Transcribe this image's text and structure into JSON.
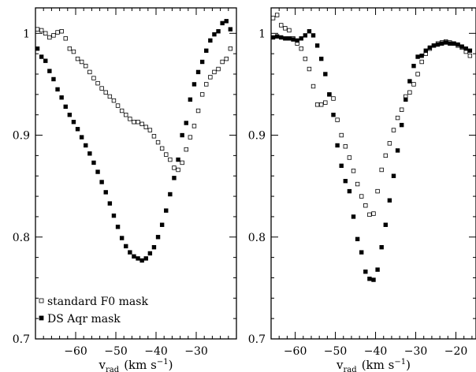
{
  "chart_data": [
    {
      "type": "scatter",
      "panel": "left",
      "xlabel_main": "v",
      "xlabel_sub": "rad",
      "xlabel_units": "(km s",
      "xlabel_sup": "−1",
      "xlabel_close": ")",
      "xlim": [
        -70,
        -20
      ],
      "ylim": [
        0.7,
        1.025
      ],
      "xticks": [
        -60,
        -50,
        -40,
        -30
      ],
      "xtick_labels": [
        "−60",
        "−50",
        "−40",
        "−30"
      ],
      "yticks": [
        0.8,
        0.9,
        1.0
      ],
      "ytick_labels": [
        "0.8",
        "0.9",
        "1"
      ],
      "ytick_floor_label": "0.7",
      "legend_placement": "bottom-left",
      "series": [
        {
          "name": "standard F0 mask",
          "marker": "open-square",
          "x": [
            -69.5,
            -68.5,
            -67.5,
            -66.5,
            -65.5,
            -64.5,
            -63.5,
            -62.5,
            -61.5,
            -60.5,
            -59.5,
            -58.5,
            -57.5,
            -56.5,
            -55.5,
            -54.5,
            -53.5,
            -52.5,
            -51.5,
            -50.5,
            -49.5,
            -48.5,
            -47.5,
            -46.5,
            -45.5,
            -44.5,
            -43.5,
            -42.5,
            -41.5,
            -40.5,
            -39.5,
            -38.5,
            -37.5,
            -36.5,
            -35.5,
            -34.5,
            -33.5,
            -32.5,
            -31.5,
            -30.5,
            -29.5,
            -28.5,
            -27.5,
            -26.5,
            -25.5,
            -24.5,
            -23.5,
            -22.5,
            -21.5
          ],
          "values": [
            1.004,
            1.003,
            1.0,
            0.996,
            0.998,
            1.001,
            1.002,
            0.995,
            0.985,
            0.982,
            0.975,
            0.972,
            0.968,
            0.962,
            0.956,
            0.951,
            0.946,
            0.942,
            0.938,
            0.934,
            0.929,
            0.924,
            0.92,
            0.916,
            0.913,
            0.913,
            0.911,
            0.908,
            0.905,
            0.899,
            0.893,
            0.887,
            0.881,
            0.876,
            0.868,
            0.866,
            0.873,
            0.886,
            0.898,
            0.909,
            0.924,
            0.94,
            0.95,
            0.957,
            0.962,
            0.965,
            0.972,
            0.975,
            0.985
          ]
        },
        {
          "name": "DS Aqr mask",
          "marker": "filled-square",
          "x": [
            -69.5,
            -68.5,
            -67.5,
            -66.5,
            -65.5,
            -64.5,
            -63.5,
            -62.5,
            -61.5,
            -60.5,
            -59.5,
            -58.5,
            -57.5,
            -56.5,
            -55.5,
            -54.5,
            -53.5,
            -52.5,
            -51.5,
            -50.5,
            -49.5,
            -48.5,
            -47.5,
            -46.5,
            -45.5,
            -44.5,
            -43.5,
            -42.5,
            -41.5,
            -40.5,
            -39.5,
            -38.5,
            -37.5,
            -36.5,
            -35.5,
            -34.5,
            -33.5,
            -32.5,
            -31.5,
            -30.5,
            -29.5,
            -28.5,
            -27.5,
            -26.5,
            -25.5,
            -24.5,
            -23.5,
            -22.5,
            -21.5
          ],
          "values": [
            0.985,
            0.977,
            0.973,
            0.963,
            0.955,
            0.945,
            0.937,
            0.928,
            0.92,
            0.913,
            0.906,
            0.898,
            0.89,
            0.882,
            0.873,
            0.864,
            0.854,
            0.844,
            0.833,
            0.821,
            0.81,
            0.799,
            0.791,
            0.785,
            0.781,
            0.779,
            0.777,
            0.779,
            0.784,
            0.79,
            0.8,
            0.812,
            0.826,
            0.842,
            0.858,
            0.876,
            0.9,
            0.912,
            0.935,
            0.95,
            0.962,
            0.972,
            0.983,
            0.993,
            0.999,
            1.002,
            1.01,
            1.012,
            1.004
          ]
        }
      ]
    },
    {
      "type": "scatter",
      "panel": "right",
      "xlabel_main": "v",
      "xlabel_sub": "rad",
      "xlabel_units": "(km s",
      "xlabel_sup": "−1",
      "xlabel_close": ")",
      "xlim": [
        -66,
        -15
      ],
      "ylim": [
        0.7,
        1.025
      ],
      "xticks": [
        -60,
        -50,
        -40,
        -30,
        -20
      ],
      "xtick_labels": [
        "−60",
        "−50",
        "−40",
        "−30",
        "−20"
      ],
      "yticks": [
        0.8,
        0.9,
        1.0
      ],
      "ytick_labels": [
        "0.8",
        "0.9",
        "1"
      ],
      "ytick_floor_label": "0.7",
      "series": [
        {
          "name": "standard F0 mask",
          "marker": "open-square",
          "x": [
            -65.5,
            -64.5,
            -63.5,
            -62.5,
            -61.5,
            -60.5,
            -59.5,
            -58.5,
            -57.5,
            -56.5,
            -55.5,
            -54.5,
            -53.5,
            -52.5,
            -51.5,
            -50.5,
            -49.5,
            -48.5,
            -47.5,
            -46.5,
            -45.5,
            -44.5,
            -43.5,
            -42.5,
            -41.5,
            -40.5,
            -39.5,
            -38.5,
            -37.5,
            -36.5,
            -35.5,
            -34.5,
            -33.5,
            -32.5,
            -31.5,
            -30.5,
            -29.5,
            -28.5,
            -27.5,
            -26.5,
            -25.5,
            -24.5,
            -23.5,
            -22.5,
            -21.5,
            -20.5,
            -19.5,
            -18.5,
            -17.5,
            -16.5
          ],
          "values": [
            1.015,
            1.018,
            1.008,
            1.005,
            1.003,
            0.995,
            0.99,
            0.985,
            0.975,
            0.965,
            0.948,
            0.93,
            0.93,
            0.932,
            0.94,
            0.936,
            0.915,
            0.9,
            0.889,
            0.878,
            0.865,
            0.852,
            0.84,
            0.831,
            0.822,
            0.823,
            0.845,
            0.866,
            0.88,
            0.892,
            0.905,
            0.917,
            0.925,
            0.938,
            0.942,
            0.95,
            0.96,
            0.972,
            0.98,
            0.985,
            0.988,
            0.99,
            0.991,
            0.992,
            0.991,
            0.99,
            0.988,
            0.986,
            0.982,
            0.978
          ]
        },
        {
          "name": "DS Aqr mask",
          "marker": "filled-square",
          "x": [
            -65.5,
            -64.5,
            -63.5,
            -62.5,
            -61.5,
            -60.5,
            -59.5,
            -58.5,
            -57.5,
            -56.5,
            -55.5,
            -54.5,
            -53.5,
            -52.5,
            -51.5,
            -50.5,
            -49.5,
            -48.5,
            -47.5,
            -46.5,
            -45.5,
            -44.5,
            -43.5,
            -42.5,
            -41.5,
            -40.5,
            -39.5,
            -38.5,
            -37.5,
            -36.5,
            -35.5,
            -34.5,
            -33.5,
            -32.5,
            -31.5,
            -30.5,
            -29.5,
            -28.5,
            -27.5,
            -26.5,
            -25.5,
            -24.5,
            -23.5,
            -22.5,
            -21.5,
            -20.5,
            -19.5,
            -18.5,
            -17.5,
            -16.5
          ],
          "values": [
            0.996,
            0.997,
            0.996,
            0.995,
            0.995,
            0.994,
            0.993,
            0.995,
            0.998,
            1.002,
            0.998,
            0.988,
            0.975,
            0.96,
            0.94,
            0.92,
            0.89,
            0.87,
            0.855,
            0.845,
            0.82,
            0.798,
            0.785,
            0.766,
            0.759,
            0.758,
            0.768,
            0.79,
            0.812,
            0.836,
            0.86,
            0.885,
            0.91,
            0.935,
            0.953,
            0.968,
            0.977,
            0.978,
            0.983,
            0.986,
            0.988,
            0.989,
            0.99,
            0.991,
            0.99,
            0.99,
            0.989,
            0.987,
            0.985,
            0.983
          ]
        }
      ]
    }
  ]
}
